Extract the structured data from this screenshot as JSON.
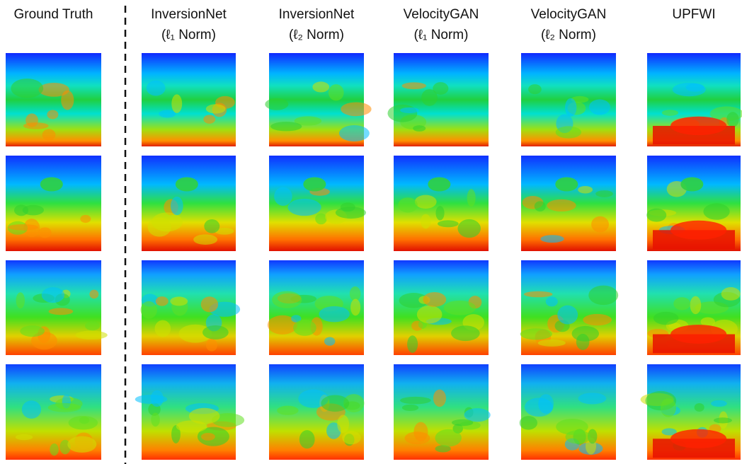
{
  "columns": [
    {
      "title": "Ground Truth"
    },
    {
      "title": "InversionNet",
      "subtitle": "(ℓ₁ Norm)"
    },
    {
      "title": "InversionNet",
      "subtitle": "(ℓ₂ Norm)"
    },
    {
      "title": "VelocityGAN",
      "subtitle": "(ℓ₁ Norm)"
    },
    {
      "title": "VelocityGAN",
      "subtitle": "(ℓ₂ Norm)"
    },
    {
      "title": "UPFWI"
    }
  ]
}
